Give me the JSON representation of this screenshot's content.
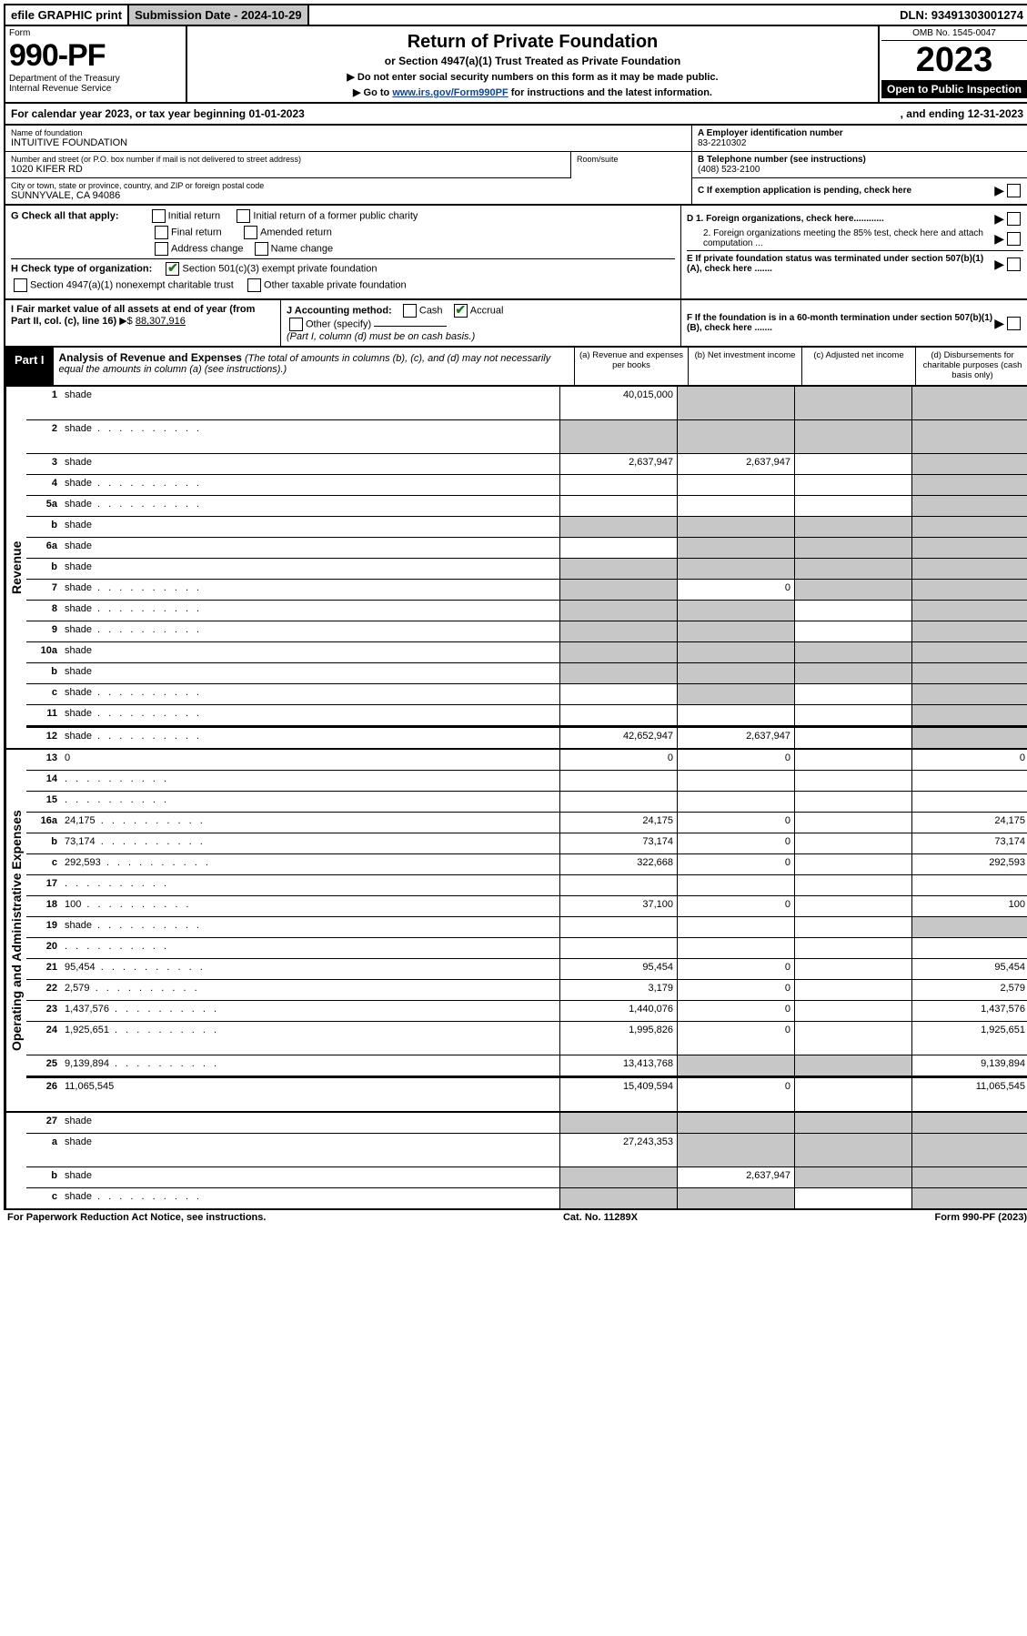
{
  "colors": {
    "black": "#000000",
    "white": "#ffffff",
    "shade": "#c7c7c7",
    "link": "#0645ad",
    "check": "#1a7a1a"
  },
  "topbar": {
    "efile": "efile GRAPHIC print",
    "submission_label": "Submission Date - 2024-10-29",
    "dln": "DLN: 93491303001274"
  },
  "header": {
    "form_label": "Form",
    "form_number": "990-PF",
    "dept1": "Department of the Treasury",
    "dept2": "Internal Revenue Service",
    "title": "Return of Private Foundation",
    "subtitle": "or Section 4947(a)(1) Trust Treated as Private Foundation",
    "instr1": "▶ Do not enter social security numbers on this form as it may be made public.",
    "instr2_pre": "▶ Go to ",
    "instr2_link": "www.irs.gov/Form990PF",
    "instr2_post": " for instructions and the latest information.",
    "omb": "OMB No. 1545-0047",
    "year": "2023",
    "open_public": "Open to Public Inspection"
  },
  "cal_year": {
    "left": "For calendar year 2023, or tax year beginning 01-01-2023",
    "right": ", and ending 12-31-2023"
  },
  "foundation": {
    "name_label": "Name of foundation",
    "name": "INTUITIVE FOUNDATION",
    "addr_label": "Number and street (or P.O. box number if mail is not delivered to street address)",
    "addr": "1020 KIFER RD",
    "room_label": "Room/suite",
    "city_label": "City or town, state or province, country, and ZIP or foreign postal code",
    "city": "SUNNYVALE, CA  94086"
  },
  "right_info": {
    "a_label": "A Employer identification number",
    "a_val": "83-2210302",
    "b_label": "B Telephone number (see instructions)",
    "b_val": "(408) 523-2100",
    "c_label": "C If exemption application is pending, check here"
  },
  "g_section": {
    "label": "G Check all that apply:",
    "opts": [
      "Initial return",
      "Initial return of a former public charity",
      "Final return",
      "Amended return",
      "Address change",
      "Name change"
    ]
  },
  "h_section": {
    "label": "H Check type of organization:",
    "opt1": "Section 501(c)(3) exempt private foundation",
    "opt2": "Section 4947(a)(1) nonexempt charitable trust",
    "opt3": "Other taxable private foundation"
  },
  "d_section": {
    "d1": "D 1. Foreign organizations, check here............",
    "d2": "2. Foreign organizations meeting the 85% test, check here and attach computation ...",
    "e": "E  If private foundation status was terminated under section 507(b)(1)(A), check here .......",
    "f_box": "F  If the foundation is in a 60-month termination under section 507(b)(1)(B), check here ......."
  },
  "i_section": {
    "label": "I Fair market value of all assets at end of year (from Part II, col. (c), line 16)",
    "arrow": "▶$",
    "val": "88,307,916"
  },
  "j_section": {
    "label": "J Accounting method:",
    "cash": "Cash",
    "accrual": "Accrual",
    "other": "Other (specify)",
    "note": "(Part I, column (d) must be on cash basis.)"
  },
  "part1": {
    "badge": "Part I",
    "title": "Analysis of Revenue and Expenses",
    "note": "(The total of amounts in columns (b), (c), and (d) may not necessarily equal the amounts in column (a) (see instructions).)",
    "col_a": "(a) Revenue and expenses per books",
    "col_b": "(b) Net investment income",
    "col_c": "(c) Adjusted net income",
    "col_d": "(d) Disbursements for charitable purposes (cash basis only)"
  },
  "side_labels": {
    "revenue": "Revenue",
    "expenses": "Operating and Administrative Expenses"
  },
  "rows": [
    {
      "n": "1",
      "d": "shade",
      "a": "40,015,000",
      "b": "shade",
      "c": "shade",
      "tall": true
    },
    {
      "n": "2",
      "d": "shade",
      "a": "shade",
      "b": "shade",
      "c": "shade",
      "dots": true,
      "tall": true
    },
    {
      "n": "3",
      "d": "shade",
      "a": "2,637,947",
      "b": "2,637,947",
      "c": ""
    },
    {
      "n": "4",
      "d": "shade",
      "a": "",
      "b": "",
      "c": "",
      "dots": true
    },
    {
      "n": "5a",
      "d": "shade",
      "a": "",
      "b": "",
      "c": "",
      "dots": true
    },
    {
      "n": "b",
      "d": "shade",
      "a": "shade",
      "b": "shade",
      "c": "shade"
    },
    {
      "n": "6a",
      "d": "shade",
      "a": "",
      "b": "shade",
      "c": "shade"
    },
    {
      "n": "b",
      "d": "shade",
      "a": "shade",
      "b": "shade",
      "c": "shade"
    },
    {
      "n": "7",
      "d": "shade",
      "a": "shade",
      "b": "0",
      "c": "shade",
      "dots": true
    },
    {
      "n": "8",
      "d": "shade",
      "a": "shade",
      "b": "shade",
      "c": "",
      "dots": true
    },
    {
      "n": "9",
      "d": "shade",
      "a": "shade",
      "b": "shade",
      "c": "",
      "dots": true
    },
    {
      "n": "10a",
      "d": "shade",
      "a": "shade",
      "b": "shade",
      "c": "shade"
    },
    {
      "n": "b",
      "d": "shade",
      "a": "shade",
      "b": "shade",
      "c": "shade"
    },
    {
      "n": "c",
      "d": "shade",
      "a": "",
      "b": "shade",
      "c": "",
      "dots": true
    },
    {
      "n": "11",
      "d": "shade",
      "a": "",
      "b": "",
      "c": "",
      "dots": true
    },
    {
      "n": "12",
      "d": "shade",
      "a": "42,652,947",
      "b": "2,637,947",
      "c": "",
      "dots": true,
      "divider": true
    }
  ],
  "exp_rows": [
    {
      "n": "13",
      "d": "0",
      "a": "0",
      "b": "0",
      "c": ""
    },
    {
      "n": "14",
      "d": "",
      "a": "",
      "b": "",
      "c": "",
      "dots": true
    },
    {
      "n": "15",
      "d": "",
      "a": "",
      "b": "",
      "c": "",
      "dots": true
    },
    {
      "n": "16a",
      "d": "24,175",
      "a": "24,175",
      "b": "0",
      "c": "",
      "dots": true
    },
    {
      "n": "b",
      "d": "73,174",
      "a": "73,174",
      "b": "0",
      "c": "",
      "dots": true
    },
    {
      "n": "c",
      "d": "292,593",
      "a": "322,668",
      "b": "0",
      "c": "",
      "dots": true
    },
    {
      "n": "17",
      "d": "",
      "a": "",
      "b": "",
      "c": "",
      "dots": true
    },
    {
      "n": "18",
      "d": "100",
      "a": "37,100",
      "b": "0",
      "c": "",
      "dots": true
    },
    {
      "n": "19",
      "d": "shade",
      "a": "",
      "b": "",
      "c": "",
      "dots": true
    },
    {
      "n": "20",
      "d": "",
      "a": "",
      "b": "",
      "c": "",
      "dots": true
    },
    {
      "n": "21",
      "d": "95,454",
      "a": "95,454",
      "b": "0",
      "c": "",
      "dots": true
    },
    {
      "n": "22",
      "d": "2,579",
      "a": "3,179",
      "b": "0",
      "c": "",
      "dots": true
    },
    {
      "n": "23",
      "d": "1,437,576",
      "a": "1,440,076",
      "b": "0",
      "c": "",
      "dots": true
    },
    {
      "n": "24",
      "d": "1,925,651",
      "a": "1,995,826",
      "b": "0",
      "c": "",
      "dots": true,
      "tall": true
    },
    {
      "n": "25",
      "d": "9,139,894",
      "a": "13,413,768",
      "b": "shade",
      "c": "shade",
      "dots": true
    },
    {
      "n": "26",
      "d": "11,065,545",
      "a": "15,409,594",
      "b": "0",
      "c": "",
      "tall": true,
      "divider": true
    }
  ],
  "final_rows": [
    {
      "n": "27",
      "d": "shade",
      "a": "shade",
      "b": "shade",
      "c": "shade"
    },
    {
      "n": "a",
      "d": "shade",
      "a": "27,243,353",
      "b": "shade",
      "c": "shade",
      "tall": true
    },
    {
      "n": "b",
      "d": "shade",
      "a": "shade",
      "b": "2,637,947",
      "c": "shade"
    },
    {
      "n": "c",
      "d": "shade",
      "a": "shade",
      "b": "shade",
      "c": "",
      "dots": true
    }
  ],
  "footer": {
    "left": "For Paperwork Reduction Act Notice, see instructions.",
    "mid": "Cat. No. 11289X",
    "right": "Form 990-PF (2023)"
  }
}
